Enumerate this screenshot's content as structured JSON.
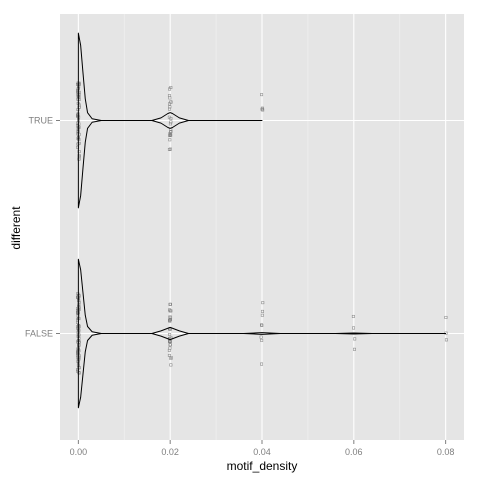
{
  "chart_data": {
    "type": "violin",
    "xlabel": "motif_density",
    "ylabel": "different",
    "xlim": [
      -0.004,
      0.084
    ],
    "x_ticks": [
      0.0,
      0.02,
      0.04,
      0.06,
      0.08
    ],
    "x_tick_labels": [
      "0.00",
      "0.02",
      "0.04",
      "0.06",
      "0.08"
    ],
    "categories": [
      "FALSE",
      "TRUE"
    ],
    "grid": true,
    "orientation": "horizontal",
    "colors": {
      "panel": "#e5e5e5",
      "grid_major": "#ffffff",
      "grid_minor": "#f2f2f2",
      "outline": "#000000",
      "points": "#7f7f7f"
    },
    "series": [
      {
        "name": "TRUE",
        "density": [
          [
            0.0,
            1.0
          ],
          [
            0.0005,
            0.86
          ],
          [
            0.001,
            0.55
          ],
          [
            0.0015,
            0.25
          ],
          [
            0.002,
            0.09
          ],
          [
            0.003,
            0.02
          ],
          [
            0.005,
            0.0
          ],
          [
            0.016,
            0.0
          ],
          [
            0.018,
            0.03
          ],
          [
            0.0195,
            0.08
          ],
          [
            0.02,
            0.09
          ],
          [
            0.0205,
            0.08
          ],
          [
            0.022,
            0.03
          ],
          [
            0.024,
            0.0
          ],
          [
            0.04,
            0.0
          ]
        ],
        "points": [
          {
            "x": 0.0,
            "count": 60
          },
          {
            "x": 0.02,
            "count": 24
          },
          {
            "x": 0.04,
            "count": 4
          }
        ]
      },
      {
        "name": "FALSE",
        "density": [
          [
            0.0,
            0.85
          ],
          [
            0.0005,
            0.73
          ],
          [
            0.001,
            0.47
          ],
          [
            0.0015,
            0.21
          ],
          [
            0.002,
            0.08
          ],
          [
            0.003,
            0.02
          ],
          [
            0.005,
            0.0
          ],
          [
            0.016,
            0.0
          ],
          [
            0.018,
            0.03
          ],
          [
            0.0195,
            0.06
          ],
          [
            0.02,
            0.07
          ],
          [
            0.0205,
            0.06
          ],
          [
            0.022,
            0.03
          ],
          [
            0.024,
            0.0
          ],
          [
            0.036,
            0.0
          ],
          [
            0.04,
            0.01
          ],
          [
            0.044,
            0.0
          ],
          [
            0.056,
            0.0
          ],
          [
            0.06,
            0.005
          ],
          [
            0.064,
            0.0
          ],
          [
            0.08,
            0.0
          ]
        ],
        "points": [
          {
            "x": 0.0,
            "count": 80
          },
          {
            "x": 0.02,
            "count": 30
          },
          {
            "x": 0.04,
            "count": 8
          },
          {
            "x": 0.06,
            "count": 4
          },
          {
            "x": 0.08,
            "count": 3
          }
        ]
      }
    ]
  }
}
